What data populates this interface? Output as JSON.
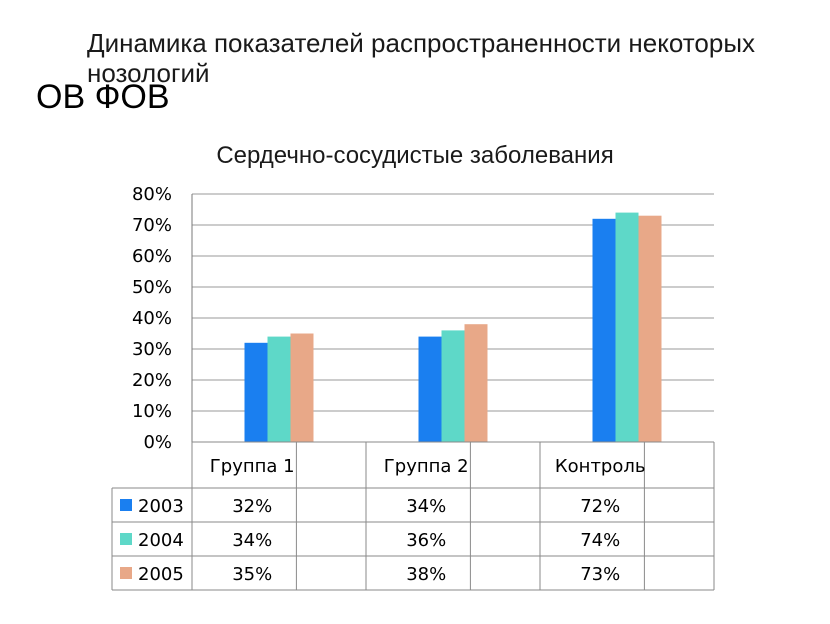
{
  "slide": {
    "title": "Динамика показателей распространенности некоторых нозологий",
    "subtitle": "ОВ ФОВ"
  },
  "chart_data": {
    "type": "bar",
    "title": "Сердечно-сосудистые заболевания",
    "categories": [
      "Группа 1",
      "Группа 2",
      "Контроль"
    ],
    "series": [
      {
        "name": "2003",
        "values": [
          32,
          34,
          72
        ],
        "labels": [
          "32%",
          "34%",
          "72%"
        ],
        "color": "#1a7ff0"
      },
      {
        "name": "2004",
        "values": [
          34,
          36,
          74
        ],
        "labels": [
          "34%",
          "36%",
          "74%"
        ],
        "color": "#5ed8c8"
      },
      {
        "name": "2005",
        "values": [
          35,
          38,
          73
        ],
        "labels": [
          "35%",
          "38%",
          "73%"
        ],
        "color": "#e8a888"
      }
    ],
    "ylim": [
      0,
      80
    ],
    "yticks": [
      "0%",
      "10%",
      "20%",
      "30%",
      "40%",
      "50%",
      "60%",
      "70%",
      "80%"
    ],
    "grid": true,
    "legend": "data-table"
  }
}
